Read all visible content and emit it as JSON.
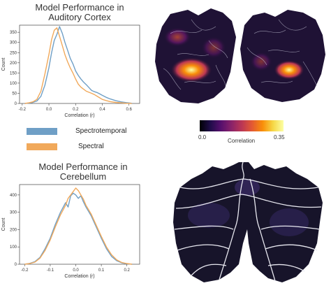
{
  "colors": {
    "spectrotemporal": "#6f9fc6",
    "spectral": "#f1a95b",
    "flatmap_bg": "#1a0e2e",
    "cerebellum_bg": "#161226"
  },
  "auditory": {
    "title_line1": "Model Performance in",
    "title_line2": "Auditory Cortex"
  },
  "cerebellum": {
    "title_line1": "Model Performance in",
    "title_line2": "Cerebellum"
  },
  "legend": {
    "items": [
      {
        "label": "Spectrotemporal",
        "color": "#6f9fc6"
      },
      {
        "label": "Spectral",
        "color": "#f1a95b"
      }
    ]
  },
  "colorbar": {
    "min_label": "0.0",
    "max_label": "0.35",
    "title": "Correlation",
    "colormap": "inferno"
  },
  "chart_data": [
    {
      "type": "line",
      "id": "auditory",
      "title": "Model Performance in Auditory Cortex",
      "xlabel": "Correlation (r)",
      "ylabel": "Count",
      "xlim": [
        -0.22,
        0.68
      ],
      "ylim": [
        0,
        385
      ],
      "xticks": [
        -0.2,
        0.0,
        0.2,
        0.4,
        0.6
      ],
      "xtick_labels": [
        "-0.2",
        "0.0",
        "0.2",
        "0.4",
        "0.6"
      ],
      "yticks": [
        0,
        50,
        100,
        150,
        200,
        250,
        300,
        350
      ],
      "ytick_labels": [
        "0",
        "50",
        "100",
        "150",
        "200",
        "250",
        "300",
        "350"
      ],
      "grid": false,
      "series": [
        {
          "name": "Spectrotemporal",
          "x": [
            -0.18,
            -0.15,
            -0.12,
            -0.09,
            -0.06,
            -0.03,
            0.0,
            0.02,
            0.04,
            0.06,
            0.08,
            0.1,
            0.12,
            0.14,
            0.16,
            0.18,
            0.2,
            0.22,
            0.24,
            0.26,
            0.28,
            0.3,
            0.32,
            0.34,
            0.36,
            0.38,
            0.4,
            0.43,
            0.46,
            0.5,
            0.54,
            0.58,
            0.62
          ],
          "y": [
            0,
            2,
            5,
            12,
            35,
            90,
            175,
            250,
            310,
            340,
            378,
            345,
            300,
            262,
            222,
            195,
            160,
            138,
            120,
            105,
            92,
            78,
            64,
            58,
            54,
            47,
            40,
            30,
            22,
            14,
            8,
            4,
            1
          ]
        },
        {
          "name": "Spectral",
          "x": [
            -0.18,
            -0.15,
            -0.12,
            -0.09,
            -0.06,
            -0.03,
            0.0,
            0.02,
            0.04,
            0.06,
            0.08,
            0.1,
            0.12,
            0.14,
            0.16,
            0.18,
            0.2,
            0.22,
            0.24,
            0.26,
            0.28,
            0.3,
            0.32,
            0.34,
            0.36,
            0.38,
            0.4,
            0.43,
            0.46,
            0.5,
            0.54,
            0.58,
            0.62
          ],
          "y": [
            0,
            3,
            8,
            20,
            60,
            145,
            240,
            315,
            360,
            372,
            330,
            285,
            240,
            205,
            175,
            150,
            120,
            95,
            80,
            70,
            60,
            55,
            50,
            44,
            36,
            28,
            20,
            14,
            9,
            5,
            3,
            1,
            0
          ]
        }
      ]
    },
    {
      "type": "line",
      "id": "cerebellum",
      "title": "Model Performance in Cerebellum",
      "xlabel": "Correlation (r)",
      "ylabel": "Count",
      "xlim": [
        -0.22,
        0.25
      ],
      "ylim": [
        0,
        460
      ],
      "xticks": [
        -0.2,
        -0.1,
        0.0,
        0.1,
        0.2
      ],
      "xtick_labels": [
        "-0.2",
        "-0.1",
        "0.0",
        "0.1",
        "0.2"
      ],
      "yticks": [
        0,
        100,
        200,
        300,
        400
      ],
      "ytick_labels": [
        "0",
        "100",
        "200",
        "300",
        "400"
      ],
      "grid": false,
      "series": [
        {
          "name": "Spectrotemporal",
          "x": [
            -0.2,
            -0.18,
            -0.16,
            -0.14,
            -0.12,
            -0.1,
            -0.08,
            -0.06,
            -0.04,
            -0.03,
            -0.02,
            -0.01,
            0.0,
            0.01,
            0.02,
            0.03,
            0.04,
            0.06,
            0.08,
            0.1,
            0.12,
            0.14,
            0.16,
            0.18,
            0.2,
            0.22
          ],
          "y": [
            0,
            5,
            15,
            40,
            90,
            150,
            230,
            300,
            355,
            330,
            395,
            410,
            400,
            380,
            395,
            360,
            330,
            280,
            215,
            150,
            90,
            45,
            20,
            8,
            3,
            0
          ]
        },
        {
          "name": "Spectral",
          "x": [
            -0.2,
            -0.18,
            -0.16,
            -0.14,
            -0.12,
            -0.1,
            -0.08,
            -0.06,
            -0.04,
            -0.03,
            -0.02,
            -0.01,
            0.0,
            0.01,
            0.02,
            0.03,
            0.04,
            0.06,
            0.08,
            0.1,
            0.12,
            0.14,
            0.16,
            0.18,
            0.2,
            0.22
          ],
          "y": [
            0,
            4,
            12,
            35,
            80,
            140,
            215,
            285,
            340,
            380,
            400,
            420,
            440,
            425,
            400,
            375,
            340,
            290,
            225,
            160,
            100,
            55,
            25,
            10,
            4,
            0
          ]
        }
      ]
    }
  ]
}
